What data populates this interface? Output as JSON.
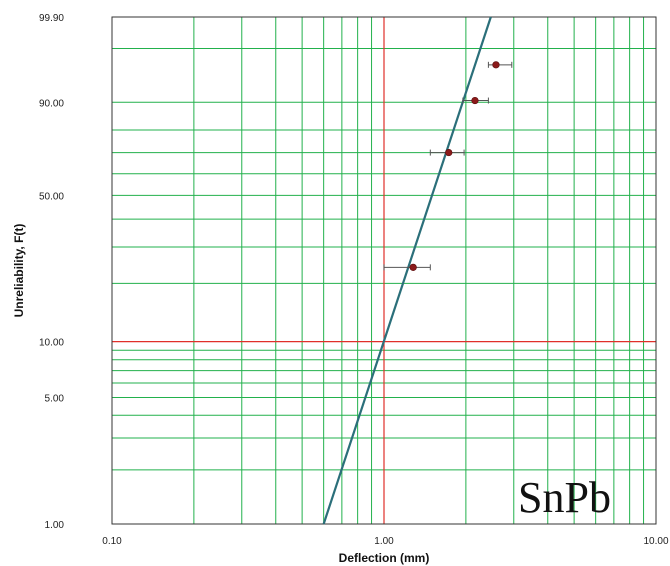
{
  "chart_data": {
    "type": "scatter",
    "xlabel": "Deflection (mm)",
    "ylabel": "Unreliability, F(t)",
    "x_scale": "log",
    "y_scale": "weibull-probability",
    "xlim": [
      0.1,
      10
    ],
    "ylim": [
      1,
      99.9
    ],
    "x_ticks": [
      "0.10",
      "1.00",
      "10.00"
    ],
    "y_ticks": [
      "99.90",
      "90.00",
      "50.00",
      "10.00",
      "5.00",
      "1.00"
    ],
    "reference_lines": {
      "x": 1.0,
      "y": 10.0
    },
    "grid": true,
    "points": [
      {
        "x": 1.28,
        "y": 24.0,
        "x_err": [
          1.0,
          1.48
        ]
      },
      {
        "x": 1.73,
        "y": 70.0,
        "x_err": [
          1.48,
          1.97
        ]
      },
      {
        "x": 2.16,
        "y": 90.5,
        "x_err": [
          1.95,
          2.42
        ]
      },
      {
        "x": 2.58,
        "y": 97.6,
        "x_err": [
          2.42,
          2.95
        ]
      }
    ],
    "fit_line": [
      {
        "x": 0.6,
        "y": 1.0
      },
      {
        "x": 2.47,
        "y": 99.9
      }
    ],
    "annotation": "SnPb",
    "colors": {
      "grid": "#22b14c",
      "reference": "#e0302a",
      "fit": "#2b6f7a",
      "point": "#8b1a1a",
      "error_bar": "#555555",
      "frame": "#333333"
    }
  }
}
